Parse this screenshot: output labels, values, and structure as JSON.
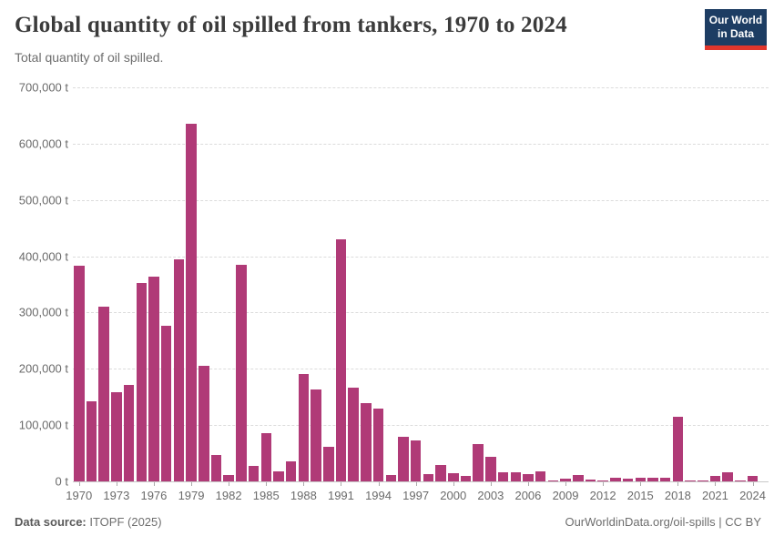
{
  "header": {
    "title": "Global quantity of oil spilled from tankers, 1970 to 2024",
    "subtitle": "Total quantity of oil spilled.",
    "logo": {
      "line1": "Our World",
      "line2": "in Data",
      "bg_color": "#1d3d63",
      "stripe_color": "#e0362c"
    }
  },
  "chart_data": {
    "type": "bar",
    "title": "Global quantity of oil spilled from tankers, 1970 to 2024",
    "subtitle": "Total quantity of oil spilled.",
    "unit": "t",
    "bar_color": "#b03a77",
    "grid": "horizontal-dashed",
    "ylim": [
      0,
      700000
    ],
    "ytick_interval": 100000,
    "ytick_labels": [
      "0 t",
      "100,000 t",
      "200,000 t",
      "300,000 t",
      "400,000 t",
      "500,000 t",
      "600,000 t",
      "700,000 t"
    ],
    "xtick_years": [
      1970,
      1973,
      1976,
      1979,
      1982,
      1985,
      1988,
      1991,
      1994,
      1997,
      2000,
      2003,
      2006,
      2009,
      2012,
      2015,
      2018,
      2021,
      2024
    ],
    "x": [
      1970,
      1971,
      1972,
      1973,
      1974,
      1975,
      1976,
      1977,
      1978,
      1979,
      1980,
      1981,
      1982,
      1983,
      1984,
      1985,
      1986,
      1987,
      1988,
      1989,
      1990,
      1991,
      1992,
      1993,
      1994,
      1995,
      1996,
      1997,
      1998,
      1999,
      2000,
      2001,
      2002,
      2003,
      2004,
      2005,
      2006,
      2007,
      2008,
      2009,
      2010,
      2011,
      2012,
      2013,
      2014,
      2015,
      2016,
      2017,
      2018,
      2019,
      2020,
      2021,
      2022,
      2023,
      2024
    ],
    "values": [
      383000,
      143000,
      311000,
      158000,
      172000,
      352000,
      364000,
      276000,
      394000,
      636000,
      206000,
      47000,
      12000,
      384000,
      28000,
      85000,
      18000,
      36000,
      190000,
      163000,
      61000,
      430000,
      166000,
      139000,
      130000,
      12000,
      80000,
      72000,
      13000,
      29000,
      14000,
      9000,
      67000,
      43000,
      16000,
      16000,
      13000,
      17000,
      2000,
      5000,
      11000,
      4000,
      1000,
      7000,
      5000,
      7000,
      7000,
      7000,
      115000,
      1000,
      1000,
      10000,
      16000,
      2000,
      10000
    ]
  },
  "footer": {
    "source_label": "Data source:",
    "source_value": " ITOPF (2025)",
    "right_text": "OurWorldinData.org/oil-spills | CC BY"
  }
}
